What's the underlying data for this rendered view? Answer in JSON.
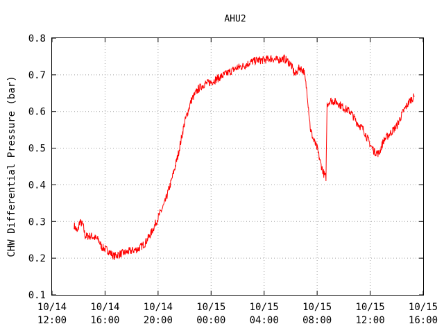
{
  "chart_data": {
    "type": "line",
    "title": "AHU2",
    "ylabel": "CHW Differential Pressure (bar)",
    "xlabel": "",
    "ylim": [
      0.1,
      0.8
    ],
    "yticks": [
      "0.1",
      "0.2",
      "0.3",
      "0.4",
      "0.5",
      "0.6",
      "0.7",
      "0.8"
    ],
    "xlim_hours": [
      0,
      28
    ],
    "xticks": [
      {
        "date": "10/14",
        "time": "12:00"
      },
      {
        "date": "10/14",
        "time": "16:00"
      },
      {
        "date": "10/14",
        "time": "20:00"
      },
      {
        "date": "10/15",
        "time": "00:00"
      },
      {
        "date": "10/15",
        "time": "04:00"
      },
      {
        "date": "10/15",
        "time": "08:00"
      },
      {
        "date": "10/15",
        "time": "12:00"
      },
      {
        "date": "10/15",
        "time": "16:00"
      }
    ],
    "grid": true,
    "series_color": "#ff0000",
    "series": [
      {
        "name": "",
        "points": [
          [
            "10/14 13:40",
            0.29
          ],
          [
            "10/14 13:55",
            0.27
          ],
          [
            "10/14 14:05",
            0.3
          ],
          [
            "10/14 14:20",
            0.29
          ],
          [
            "10/14 14:30",
            0.26
          ],
          [
            "10/14 15:00",
            0.26
          ],
          [
            "10/14 15:30",
            0.25
          ],
          [
            "10/14 15:45",
            0.23
          ],
          [
            "10/14 16:15",
            0.22
          ],
          [
            "10/14 16:40",
            0.205
          ],
          [
            "10/14 17:00",
            0.21
          ],
          [
            "10/14 17:30",
            0.215
          ],
          [
            "10/14 18:00",
            0.22
          ],
          [
            "10/14 18:30",
            0.225
          ],
          [
            "10/14 19:00",
            0.24
          ],
          [
            "10/14 19:30",
            0.27
          ],
          [
            "10/14 20:00",
            0.31
          ],
          [
            "10/14 20:30",
            0.35
          ],
          [
            "10/14 21:00",
            0.41
          ],
          [
            "10/14 21:30",
            0.48
          ],
          [
            "10/14 22:00",
            0.57
          ],
          [
            "10/14 22:30",
            0.63
          ],
          [
            "10/14 23:00",
            0.66
          ],
          [
            "10/14 23:30",
            0.675
          ],
          [
            "10/15 00:00",
            0.68
          ],
          [
            "10/15 00:30",
            0.69
          ],
          [
            "10/15 01:00",
            0.7
          ],
          [
            "10/15 01:30",
            0.71
          ],
          [
            "10/15 02:00",
            0.72
          ],
          [
            "10/15 02:30",
            0.725
          ],
          [
            "10/15 03:00",
            0.735
          ],
          [
            "10/15 03:30",
            0.74
          ],
          [
            "10/15 04:00",
            0.74
          ],
          [
            "10/15 04:30",
            0.745
          ],
          [
            "10/15 05:00",
            0.74
          ],
          [
            "10/15 05:30",
            0.745
          ],
          [
            "10/15 06:00",
            0.73
          ],
          [
            "10/15 06:20",
            0.7
          ],
          [
            "10/15 06:40",
            0.72
          ],
          [
            "10/15 07:00",
            0.71
          ],
          [
            "10/15 07:15",
            0.65
          ],
          [
            "10/15 07:30",
            0.55
          ],
          [
            "10/15 07:45",
            0.52
          ],
          [
            "10/15 08:00",
            0.5
          ],
          [
            "10/15 08:15",
            0.46
          ],
          [
            "10/15 08:30",
            0.43
          ],
          [
            "10/15 08:40",
            0.42
          ],
          [
            "10/15 08:45",
            0.62
          ],
          [
            "10/15 09:00",
            0.63
          ],
          [
            "10/15 09:30",
            0.625
          ],
          [
            "10/15 10:00",
            0.61
          ],
          [
            "10/15 10:30",
            0.6
          ],
          [
            "10/15 11:00",
            0.57
          ],
          [
            "10/15 11:30",
            0.55
          ],
          [
            "10/15 12:00",
            0.51
          ],
          [
            "10/15 12:20",
            0.49
          ],
          [
            "10/15 12:40",
            0.485
          ],
          [
            "10/15 13:00",
            0.52
          ],
          [
            "10/15 13:30",
            0.54
          ],
          [
            "10/15 14:00",
            0.56
          ],
          [
            "10/15 14:30",
            0.6
          ],
          [
            "10/15 15:00",
            0.63
          ],
          [
            "10/15 15:20",
            0.64
          ]
        ]
      }
    ]
  }
}
